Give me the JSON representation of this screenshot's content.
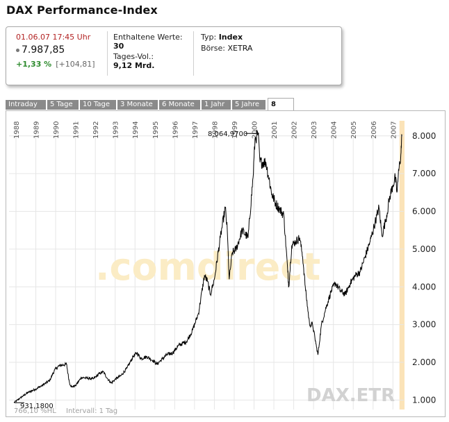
{
  "page": {
    "title": "DAX Performance-Index"
  },
  "quote": {
    "datetime": "01.06.07  17:45 Uhr",
    "price": "7.987,85",
    "change_pct": "+1,33 %",
    "change_abs": "[+104,81]",
    "constituents_label": "Enthaltene Werte:",
    "constituents_value": "30",
    "volume_label": "Tages-Vol.:",
    "volume_value": "9,12 Mrd.",
    "type_label": "Typ:",
    "type_value": "Index",
    "exchange_label": "Börse:",
    "exchange_value": "XETRA"
  },
  "tabs": [
    {
      "label": "Intraday",
      "active": false
    },
    {
      "label": "5 Tage",
      "active": false
    },
    {
      "label": "10 Tage",
      "active": false
    },
    {
      "label": "3 Monate",
      "active": false
    },
    {
      "label": "6 Monate",
      "active": false
    },
    {
      "label": "1 Jahr",
      "active": false
    },
    {
      "label": "5 Jahre",
      "active": false
    },
    {
      "label": "8",
      "active": true
    }
  ],
  "chart_data": {
    "type": "line",
    "title": "DAX Performance-Index",
    "watermark": ".comdirect",
    "symbol_label": "DAX.ETR",
    "footer_left": "766,10 %HL",
    "footer_interval": "Intervall: 1 Tag",
    "max_label": "8.064,9700",
    "min_label": "931,1800",
    "ylim": [
      750,
      8400
    ],
    "xlim": [
      1987.65,
      2007.55
    ],
    "y_ticks": [
      1000,
      2000,
      3000,
      4000,
      5000,
      6000,
      7000,
      8000
    ],
    "y_tick_labels": [
      "1.000",
      "2.000",
      "3.000",
      "4.000",
      "5.000",
      "6.000",
      "7.000",
      "8.000"
    ],
    "x_ticks": [
      "1988",
      "1989",
      "1990",
      "1991",
      "1992",
      "1993",
      "1994",
      "1995",
      "1996",
      "1997",
      "1998",
      "1999",
      "2000",
      "2001",
      "2002",
      "2003",
      "2004",
      "2005",
      "2006",
      "2007"
    ],
    "highlight_period": "2007",
    "series": [
      {
        "name": "DAX",
        "points": [
          [
            1987.9,
            931
          ],
          [
            1988.2,
            1050
          ],
          [
            1988.6,
            1200
          ],
          [
            1988.95,
            1280
          ],
          [
            1989.3,
            1380
          ],
          [
            1989.7,
            1520
          ],
          [
            1989.95,
            1800
          ],
          [
            1990.15,
            1900
          ],
          [
            1990.35,
            1930
          ],
          [
            1990.55,
            1950
          ],
          [
            1990.62,
            1700
          ],
          [
            1990.7,
            1450
          ],
          [
            1990.8,
            1350
          ],
          [
            1991.0,
            1380
          ],
          [
            1991.3,
            1600
          ],
          [
            1991.6,
            1580
          ],
          [
            1991.9,
            1560
          ],
          [
            1992.2,
            1700
          ],
          [
            1992.4,
            1750
          ],
          [
            1992.6,
            1580
          ],
          [
            1992.8,
            1450
          ],
          [
            1993.0,
            1550
          ],
          [
            1993.3,
            1650
          ],
          [
            1993.6,
            1850
          ],
          [
            1993.9,
            2150
          ],
          [
            1994.1,
            2250
          ],
          [
            1994.3,
            2100
          ],
          [
            1994.6,
            2150
          ],
          [
            1994.9,
            2050
          ],
          [
            1995.1,
            1950
          ],
          [
            1995.3,
            2050
          ],
          [
            1995.6,
            2200
          ],
          [
            1995.9,
            2250
          ],
          [
            1996.2,
            2450
          ],
          [
            1996.6,
            2550
          ],
          [
            1996.9,
            2850
          ],
          [
            1997.2,
            3300
          ],
          [
            1997.5,
            4300
          ],
          [
            1997.65,
            4150
          ],
          [
            1997.8,
            3800
          ],
          [
            1998.0,
            4200
          ],
          [
            1998.3,
            5300
          ],
          [
            1998.55,
            6100
          ],
          [
            1998.65,
            5500
          ],
          [
            1998.75,
            4200
          ],
          [
            1998.9,
            4900
          ],
          [
            1999.1,
            5000
          ],
          [
            1999.4,
            5500
          ],
          [
            1999.7,
            5300
          ],
          [
            1999.95,
            6900
          ],
          [
            2000.05,
            7900
          ],
          [
            2000.2,
            8065
          ],
          [
            2000.3,
            7300
          ],
          [
            2000.6,
            7300
          ],
          [
            2000.9,
            6450
          ],
          [
            2001.1,
            6200
          ],
          [
            2001.3,
            6050
          ],
          [
            2001.5,
            5900
          ],
          [
            2001.7,
            4400
          ],
          [
            2001.75,
            4000
          ],
          [
            2001.9,
            5100
          ],
          [
            2002.1,
            5200
          ],
          [
            2002.3,
            5300
          ],
          [
            2002.45,
            4800
          ],
          [
            2002.6,
            3900
          ],
          [
            2002.8,
            3000
          ],
          [
            2002.95,
            3000
          ],
          [
            2003.15,
            2400
          ],
          [
            2003.22,
            2200
          ],
          [
            2003.4,
            3000
          ],
          [
            2003.6,
            3400
          ],
          [
            2003.9,
            3900
          ],
          [
            2004.1,
            4100
          ],
          [
            2004.35,
            3900
          ],
          [
            2004.6,
            3800
          ],
          [
            2004.85,
            4100
          ],
          [
            2005.1,
            4300
          ],
          [
            2005.35,
            4400
          ],
          [
            2005.6,
            4800
          ],
          [
            2005.85,
            5200
          ],
          [
            2006.1,
            5700
          ],
          [
            2006.3,
            6100
          ],
          [
            2006.45,
            5350
          ],
          [
            2006.65,
            5800
          ],
          [
            2006.85,
            6400
          ],
          [
            2007.0,
            6700
          ],
          [
            2007.12,
            6900
          ],
          [
            2007.2,
            6500
          ],
          [
            2007.3,
            7100
          ],
          [
            2007.4,
            7500
          ],
          [
            2007.45,
            7990
          ]
        ]
      }
    ]
  }
}
